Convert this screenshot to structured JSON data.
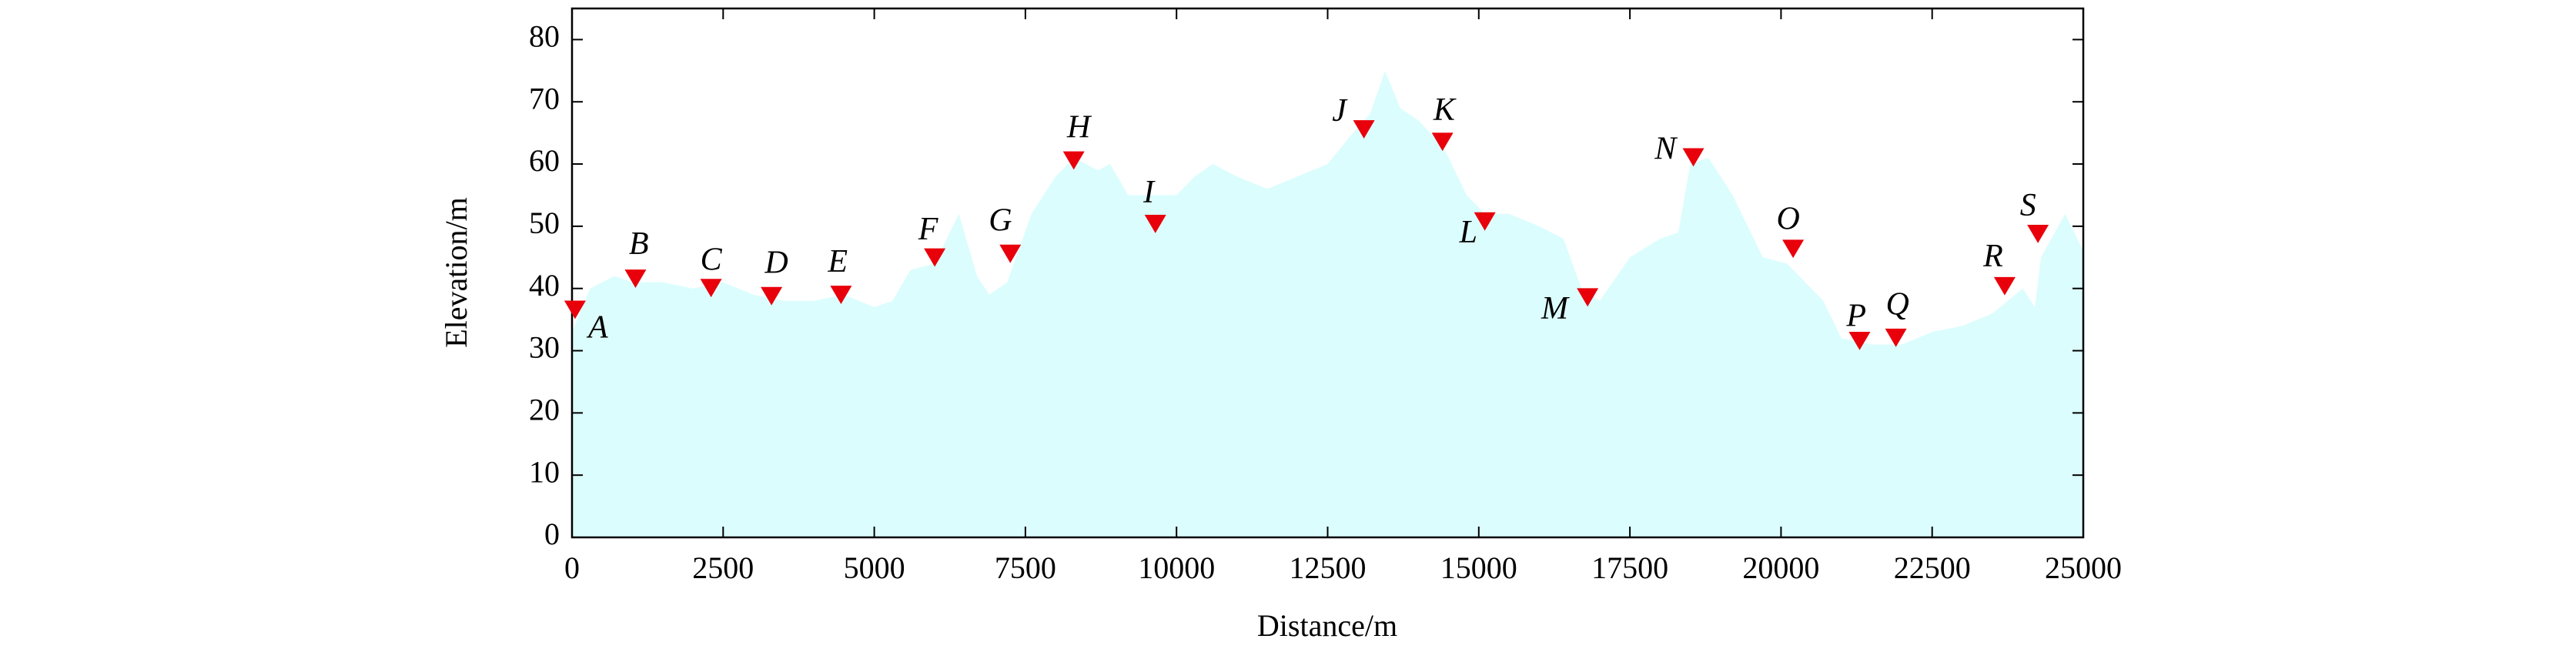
{
  "chart_data": {
    "type": "area",
    "xlabel": "Distance/m",
    "ylabel": "Elevation/m",
    "x": [
      0,
      300,
      700,
      1000,
      1500,
      2000,
      2500,
      3000,
      3500,
      4000,
      4500,
      5000,
      5300,
      5600,
      6000,
      6400,
      6700,
      6900,
      7200,
      7600,
      8000,
      8300,
      8700,
      8900,
      9200,
      9600,
      10000,
      10300,
      10600,
      11000,
      11500,
      12000,
      12500,
      13000,
      13200,
      13450,
      13700,
      14000,
      14400,
      14800,
      15100,
      15500,
      16000,
      16400,
      16700,
      17000,
      17500,
      18000,
      18300,
      18500,
      18800,
      19200,
      19700,
      20100,
      20400,
      20700,
      21000,
      21500,
      22000,
      22500,
      23000,
      23500,
      24000,
      24200,
      24300,
      24700,
      25000
    ],
    "values": [
      33,
      40,
      42,
      41,
      41,
      40,
      41,
      39,
      38,
      38,
      39,
      37,
      38,
      43,
      44,
      52,
      42,
      39,
      41,
      52,
      58,
      61,
      59,
      60,
      55,
      55,
      55,
      58,
      60,
      58,
      56,
      58,
      60,
      66,
      68,
      75,
      69,
      67,
      63,
      55,
      52,
      52,
      50,
      48,
      40,
      38,
      45,
      48,
      49,
      60,
      61,
      55,
      45,
      44,
      41,
      38,
      32,
      31,
      31,
      33,
      34,
      36,
      40,
      37,
      45,
      52,
      46
    ],
    "color": "#dcfdfd",
    "points": {
      "labels": [
        "A",
        "B",
        "C",
        "D",
        "E",
        "F",
        "G",
        "H",
        "I",
        "J",
        "K",
        "L",
        "M",
        "N",
        "O",
        "P",
        "Q",
        "R",
        "S"
      ],
      "x": [
        50,
        1050,
        2300,
        3300,
        4450,
        6000,
        7250,
        8300,
        9650,
        13100,
        14400,
        15100,
        16800,
        18550,
        20200,
        21300,
        21900,
        23700,
        24250
      ],
      "values": [
        37,
        42,
        40.5,
        39.2,
        39.4,
        45.4,
        46,
        61,
        50.8,
        66,
        64,
        51.2,
        39,
        61.5,
        46.8,
        32,
        32.5,
        40.8,
        49.2
      ],
      "color": "#e8000b"
    },
    "xlim": [
      0,
      25000
    ],
    "ylim": [
      0,
      85
    ],
    "xticks": [
      0,
      2500,
      5000,
      7500,
      10000,
      12500,
      15000,
      17500,
      20000,
      22500,
      25000
    ],
    "yticks": [
      0,
      10,
      20,
      30,
      40,
      50,
      60,
      70,
      80
    ]
  }
}
